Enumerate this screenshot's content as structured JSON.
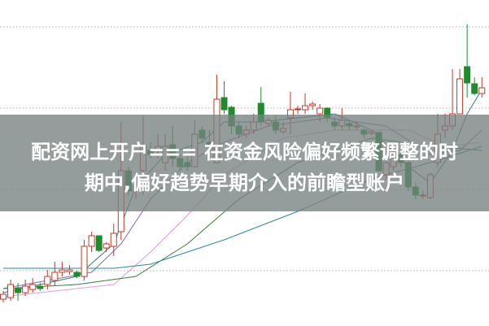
{
  "headline": {
    "line1": "配资网上开户=== 在资金风险偏好频繁调整的时",
    "line2": "期中,偏好趋势早期介入的前瞻型账户"
  },
  "chart_data": {
    "type": "candlestick",
    "title": "",
    "xlabel": "",
    "ylabel": "",
    "ylim": [
      0,
      40
    ],
    "grid": true,
    "grid_style": "dotted horizontal",
    "colors": {
      "up": "#c0392b",
      "down": "#1e8c2e",
      "grid": "#b0b0b0",
      "overlay": "#768080"
    },
    "candles": [
      {
        "o": 3.2,
        "h": 4.2,
        "l": 2.8,
        "c": 3.8
      },
      {
        "o": 3.4,
        "h": 5.6,
        "l": 3.0,
        "c": 5.0
      },
      {
        "o": 4.5,
        "h": 5.2,
        "l": 3.0,
        "c": 4.0
      },
      {
        "o": 4.0,
        "h": 5.6,
        "l": 3.6,
        "c": 4.8
      },
      {
        "o": 4.4,
        "h": 5.8,
        "l": 4.0,
        "c": 5.0
      },
      {
        "o": 4.8,
        "h": 5.2,
        "l": 4.2,
        "c": 4.5
      },
      {
        "o": 5.0,
        "h": 6.8,
        "l": 4.4,
        "c": 6.0
      },
      {
        "o": 5.5,
        "h": 7.8,
        "l": 4.8,
        "c": 6.5
      },
      {
        "o": 6.5,
        "h": 7.8,
        "l": 6.0,
        "c": 6.8
      },
      {
        "o": 6.6,
        "h": 7.4,
        "l": 6.2,
        "c": 6.8
      },
      {
        "o": 6.5,
        "h": 6.7,
        "l": 5.8,
        "c": 6.0
      },
      {
        "o": 6.0,
        "h": 10.5,
        "l": 5.5,
        "c": 9.7
      },
      {
        "o": 9.7,
        "h": 11.5,
        "l": 9.0,
        "c": 11.0
      },
      {
        "o": 11.0,
        "h": 11.0,
        "l": 9.0,
        "c": 9.2
      },
      {
        "o": 9.5,
        "h": 10.2,
        "l": 9.0,
        "c": 10.0
      },
      {
        "o": 9.7,
        "h": 12.5,
        "l": 8.5,
        "c": 11.3
      },
      {
        "o": 11.5,
        "h": 25.0,
        "l": 10.5,
        "c": 19.0
      },
      {
        "o": 19.0,
        "h": 19.5,
        "l": 16.0,
        "c": 16.5
      },
      {
        "o": 16.5,
        "h": 17.5,
        "l": 15.5,
        "c": 17.2
      },
      {
        "o": 19.0,
        "h": 25.7,
        "l": 16.0,
        "c": 22.0
      },
      {
        "o": 21.5,
        "h": 22.5,
        "l": 20.5,
        "c": 21.0
      },
      {
        "o": 21.5,
        "h": 23.5,
        "l": 20.5,
        "c": 22.0
      },
      {
        "o": 20.0,
        "h": 23.5,
        "l": 19.0,
        "c": 22.0
      },
      {
        "o": 22.2,
        "h": 24.5,
        "l": 19.5,
        "c": 20.5
      },
      {
        "o": 20.5,
        "h": 21.0,
        "l": 19.0,
        "c": 19.5
      },
      {
        "o": 20.0,
        "h": 21.0,
        "l": 19.0,
        "c": 19.5
      },
      {
        "o": 19.5,
        "h": 25.2,
        "l": 19.5,
        "c": 23.5
      },
      {
        "o": 24.0,
        "h": 24.5,
        "l": 22.5,
        "c": 23.0
      },
      {
        "o": 22.5,
        "h": 24.0,
        "l": 21.5,
        "c": 22.0
      },
      {
        "o": 20.0,
        "h": 30.8,
        "l": 20.0,
        "c": 27.8
      },
      {
        "o": 28.0,
        "h": 30.0,
        "l": 26.0,
        "c": 26.5
      },
      {
        "o": 26.8,
        "h": 27.0,
        "l": 23.5,
        "c": 24.5
      },
      {
        "o": 24.5,
        "h": 25.0,
        "l": 23.0,
        "c": 23.5
      },
      {
        "o": 23.5,
        "h": 24.5,
        "l": 23.0,
        "c": 24.0
      },
      {
        "o": 24.0,
        "h": 26.0,
        "l": 23.5,
        "c": 25.0
      },
      {
        "o": 27.3,
        "h": 29.3,
        "l": 24.5,
        "c": 25.0
      },
      {
        "o": 24.8,
        "h": 25.5,
        "l": 24.5,
        "c": 25.2
      },
      {
        "o": 25.0,
        "h": 25.8,
        "l": 23.5,
        "c": 24.0
      },
      {
        "o": 23.8,
        "h": 25.0,
        "l": 23.5,
        "c": 24.2
      },
      {
        "o": 25.5,
        "h": 28.7,
        "l": 23.5,
        "c": 26.5
      },
      {
        "o": 26.5,
        "h": 27.0,
        "l": 26.0,
        "c": 26.6
      },
      {
        "o": 26.5,
        "h": 28.5,
        "l": 26.0,
        "c": 27.0
      },
      {
        "o": 27.0,
        "h": 27.5,
        "l": 26.5,
        "c": 27.2
      },
      {
        "o": 26.0,
        "h": 27.2,
        "l": 25.0,
        "c": 26.7
      },
      {
        "o": 26.7,
        "h": 26.8,
        "l": 25.0,
        "c": 25.5
      },
      {
        "o": 25.0,
        "h": 25.5,
        "l": 24.0,
        "c": 24.5
      },
      {
        "o": 24.5,
        "h": 26.7,
        "l": 24.0,
        "c": 25.2
      },
      {
        "o": 24.8,
        "h": 25.0,
        "l": 24.0,
        "c": 24.5
      },
      {
        "o": 24.5,
        "h": 25.0,
        "l": 24.0,
        "c": 24.5
      },
      {
        "o": 24.0,
        "h": 24.2,
        "l": 23.0,
        "c": 23.5
      },
      {
        "o": 23.6,
        "h": 24.0,
        "l": 23.4,
        "c": 23.8
      },
      {
        "o": 23.7,
        "h": 23.8,
        "l": 18.8,
        "c": 19.0
      },
      {
        "o": 18.5,
        "h": 20.5,
        "l": 18.0,
        "c": 20.0
      },
      {
        "o": 19.5,
        "h": 22.0,
        "l": 19.0,
        "c": 21.0
      },
      {
        "o": 21.0,
        "h": 21.5,
        "l": 19.5,
        "c": 20.0
      },
      {
        "o": 20.0,
        "h": 20.2,
        "l": 16.5,
        "c": 17.0
      },
      {
        "o": 17.0,
        "h": 17.5,
        "l": 15.5,
        "c": 16.0
      },
      {
        "o": 16.0,
        "h": 16.5,
        "l": 15.5,
        "c": 16.0
      },
      {
        "o": 15.7,
        "h": 18.8,
        "l": 15.5,
        "c": 18.5
      },
      {
        "o": 20.0,
        "h": 26.0,
        "l": 19.5,
        "c": 23.5
      },
      {
        "o": 24.0,
        "h": 26.0,
        "l": 23.0,
        "c": 24.5
      },
      {
        "o": 24.5,
        "h": 31.5,
        "l": 24.0,
        "c": 26.0
      },
      {
        "o": 26.0,
        "h": 31.5,
        "l": 26.0,
        "c": 30.3
      },
      {
        "o": 31.8,
        "h": 37.0,
        "l": 28.0,
        "c": 29.8
      },
      {
        "o": 29.7,
        "h": 30.5,
        "l": 28.3,
        "c": 28.5
      },
      {
        "o": 28.5,
        "h": 30.5,
        "l": 28.0,
        "c": 29.2
      }
    ],
    "moving_averages": [
      {
        "color": "#2f7f7a",
        "points": [
          [
            0,
            4
          ],
          [
            10,
            6
          ],
          [
            15,
            10
          ],
          [
            18,
            17
          ],
          [
            22,
            21
          ],
          [
            27,
            22.5
          ],
          [
            30,
            25
          ],
          [
            35,
            25
          ],
          [
            40,
            25.5
          ],
          [
            45,
            26
          ],
          [
            50,
            24
          ],
          [
            55,
            19.5
          ],
          [
            58,
            17.5
          ],
          [
            61,
            21.5
          ],
          [
            63,
            26
          ],
          [
            65,
            29
          ]
        ]
      },
      {
        "color": "#8a6aa8",
        "points": [
          [
            0,
            4.5
          ],
          [
            12,
            6.5
          ],
          [
            16,
            10
          ],
          [
            20,
            15.5
          ],
          [
            25,
            20
          ],
          [
            30,
            22.5
          ],
          [
            36,
            24.5
          ],
          [
            44,
            25.5
          ],
          [
            52,
            24.5
          ],
          [
            58,
            21
          ],
          [
            62,
            21.5
          ],
          [
            65,
            24
          ]
        ]
      },
      {
        "color": "#e49ad8",
        "points": [
          [
            0,
            3.5
          ],
          [
            15,
            5
          ],
          [
            20,
            9
          ],
          [
            25,
            13.5
          ],
          [
            30,
            18.5
          ],
          [
            38,
            23
          ],
          [
            45,
            24
          ],
          [
            55,
            24
          ],
          [
            60,
            22
          ],
          [
            65,
            22.5
          ]
        ]
      },
      {
        "color": "#3c7a3c",
        "points": [
          [
            0,
            4.5
          ],
          [
            10,
            5
          ],
          [
            18,
            6
          ],
          [
            25,
            10
          ],
          [
            32,
            15.5
          ],
          [
            40,
            20
          ],
          [
            50,
            23
          ],
          [
            58,
            22
          ],
          [
            65,
            21.5
          ]
        ]
      },
      {
        "color": "#2a8a9a",
        "points": [
          [
            0,
            7
          ],
          [
            15,
            7
          ],
          [
            20,
            7.5
          ],
          [
            30,
            10.5
          ],
          [
            40,
            14
          ],
          [
            50,
            18
          ],
          [
            58,
            20
          ],
          [
            65,
            22
          ]
        ]
      }
    ]
  }
}
